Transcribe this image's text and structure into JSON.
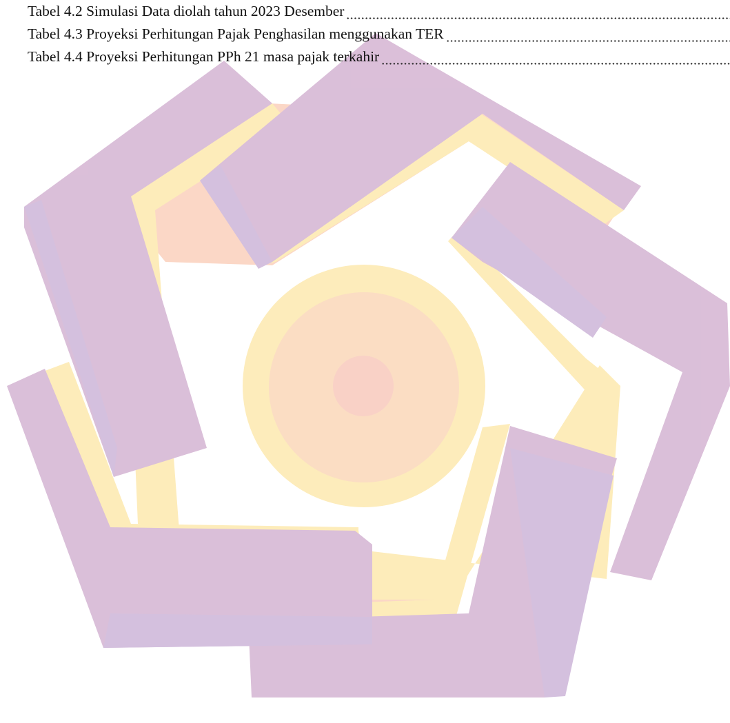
{
  "entries": [
    {
      "label": "Tabel 4.2 Simulasi Data diolah tahun 2023 Desember"
    },
    {
      "label": "Tabel 4.3 Proyeksi Perhitungan Pajak Penghasilan menggunakan TER"
    },
    {
      "label": "Tabel 4.4 Proyeksi Perhitungan PPh 21 masa pajak terkahir"
    }
  ]
}
